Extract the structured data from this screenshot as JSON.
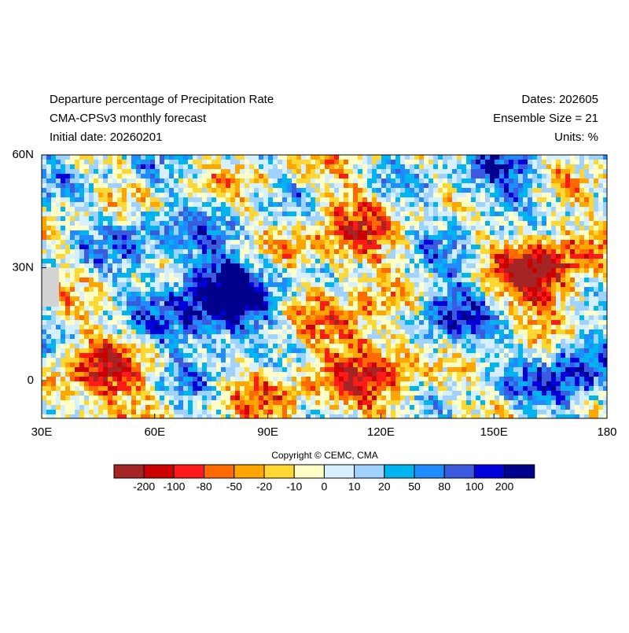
{
  "header": {
    "left": [
      "Departure percentage of Precipitation Rate",
      "CMA-CPSv3 monthly forecast",
      "Initial date: 20260201"
    ],
    "right": [
      "Dates: 202605",
      "Ensemble Size = 21",
      "Units: %"
    ]
  },
  "map": {
    "lon_labels": [
      "30E",
      "60E",
      "90E",
      "120E",
      "150E",
      "180"
    ],
    "lat_labels": [
      "60N",
      "30N",
      "0"
    ]
  },
  "copyright": "Copyright © CEMC, CMA",
  "colorbar": {
    "levels": [
      -200,
      -100,
      -80,
      -50,
      -20,
      -10,
      0,
      10,
      20,
      50,
      80,
      100,
      200
    ],
    "colors": [
      "#a52424",
      "#cc0000",
      "#ff1a1a",
      "#ff6a00",
      "#ffa500",
      "#ffd732",
      "#ffffc8",
      "#d6f0ff",
      "#9fd2ff",
      "#00b4f0",
      "#1e8cff",
      "#3c5ade",
      "#0000dc",
      "#00008c"
    ]
  }
}
